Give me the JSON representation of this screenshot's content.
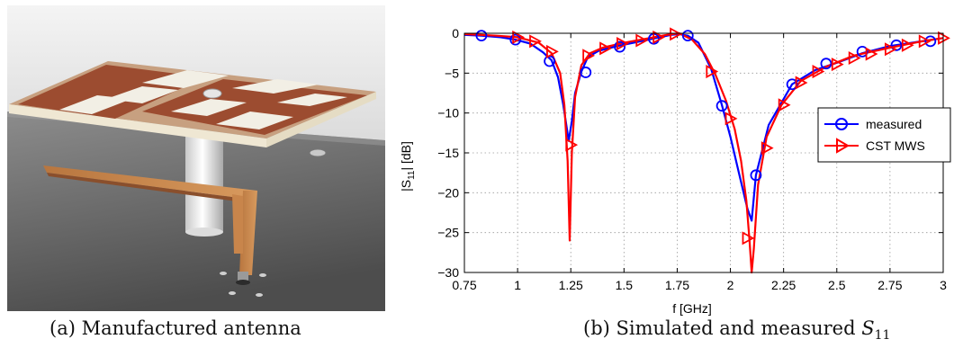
{
  "figure": {
    "caption_a": {
      "label": "(a)",
      "text": "Manufactured antenna"
    },
    "caption_b": {
      "label": "(b)",
      "text": "Simulated and measured",
      "symbol": "S",
      "subscript": "11"
    }
  },
  "chart_data": {
    "type": "line",
    "xlabel": "f [GHz]",
    "ylabel": "|S11| [dB]",
    "ylabel_main": "|S",
    "ylabel_sub": "11",
    "ylabel_tail": "| [dB]",
    "xlim": [
      0.75,
      3
    ],
    "ylim": [
      -30,
      0
    ],
    "grid": true,
    "legend_position": "right",
    "xticks": [
      "0.75",
      "1",
      "1.25",
      "1.5",
      "1.75",
      "2",
      "2.25",
      "2.5",
      "2.75",
      "3"
    ],
    "xtick_values": [
      0.75,
      1,
      1.25,
      1.5,
      1.75,
      2,
      2.25,
      2.5,
      2.75,
      3
    ],
    "yticks": [
      "0",
      "-5",
      "-10",
      "-15",
      "-20",
      "-25",
      "-30"
    ],
    "ytick_values": [
      0,
      -5,
      -10,
      -15,
      -20,
      -25,
      -30
    ],
    "series": [
      {
        "name": "measured",
        "color": "#0000ff",
        "marker": "circle",
        "x": [
          0.75,
          0.83,
          0.92,
          0.99,
          1.06,
          1.12,
          1.16,
          1.19,
          1.215,
          1.24,
          1.255,
          1.27,
          1.3,
          1.33,
          1.38,
          1.47,
          1.56,
          1.65,
          1.72,
          1.76,
          1.8,
          1.85,
          1.91,
          1.96,
          2.0,
          2.04,
          2.08,
          2.1,
          2.12,
          2.18,
          2.29,
          2.4,
          2.5,
          2.62,
          2.75,
          2.9,
          3.0
        ],
        "y": [
          -0.2,
          -0.3,
          -0.5,
          -0.8,
          -1.3,
          -2.4,
          -3.4,
          -5.5,
          -9.0,
          -13.5,
          -11.0,
          -7.5,
          -4.8,
          -3.0,
          -2.2,
          -1.6,
          -1.1,
          -0.6,
          -0.2,
          -0.1,
          -0.3,
          -1.2,
          -4.5,
          -9.0,
          -13.0,
          -17.5,
          -22.0,
          -23.5,
          -17.8,
          -11.5,
          -6.4,
          -4.6,
          -3.7,
          -2.5,
          -1.6,
          -1.0,
          -0.6
        ],
        "marker_x": [
          0.83,
          0.99,
          1.15,
          1.32,
          1.48,
          1.64,
          1.8,
          1.96,
          2.12,
          2.29,
          2.45,
          2.62,
          2.78,
          2.94
        ],
        "marker_y": [
          -0.3,
          -0.8,
          -3.5,
          -4.9,
          -1.7,
          -0.7,
          -0.3,
          -9.1,
          -17.8,
          -6.4,
          -3.8,
          -2.3,
          -1.5,
          -1.0
        ]
      },
      {
        "name": "CST MWS",
        "color": "#ff0000",
        "marker": "triangle-right",
        "x": [
          0.75,
          0.9,
          1.0,
          1.1,
          1.16,
          1.2,
          1.22,
          1.235,
          1.245,
          1.255,
          1.27,
          1.3,
          1.34,
          1.4,
          1.5,
          1.6,
          1.7,
          1.76,
          1.82,
          1.88,
          1.93,
          1.98,
          2.02,
          2.05,
          2.075,
          2.09,
          2.1,
          2.11,
          2.13,
          2.17,
          2.24,
          2.33,
          2.45,
          2.58,
          2.75,
          2.9,
          3.0
        ],
        "y": [
          -0.1,
          -0.3,
          -0.5,
          -1.2,
          -2.5,
          -5.0,
          -9.0,
          -16.0,
          -26.0,
          -15.0,
          -8.0,
          -4.0,
          -2.5,
          -1.8,
          -1.2,
          -0.7,
          -0.2,
          0.0,
          -0.8,
          -2.6,
          -5.2,
          -8.5,
          -12.0,
          -16.0,
          -21.0,
          -26.0,
          -30.0,
          -27.0,
          -19.0,
          -13.0,
          -9.0,
          -6.0,
          -4.2,
          -2.8,
          -1.8,
          -1.0,
          -0.6
        ],
        "marker_x": [
          1.0,
          1.08,
          1.16,
          1.25,
          1.33,
          1.41,
          1.49,
          1.58,
          1.66,
          1.74,
          1.91,
          2.0,
          2.08,
          2.17,
          2.25,
          2.33,
          2.41,
          2.5,
          2.58,
          2.66,
          2.75,
          2.83,
          2.91,
          3.0
        ],
        "marker_y": [
          -0.5,
          -1.0,
          -2.3,
          -14.0,
          -2.8,
          -1.9,
          -1.3,
          -0.9,
          -0.5,
          -0.1,
          -4.8,
          -10.7,
          -25.7,
          -14.4,
          -9.0,
          -6.2,
          -4.8,
          -3.9,
          -3.1,
          -2.6,
          -2.0,
          -1.5,
          -1.0,
          -0.6
        ]
      }
    ]
  }
}
